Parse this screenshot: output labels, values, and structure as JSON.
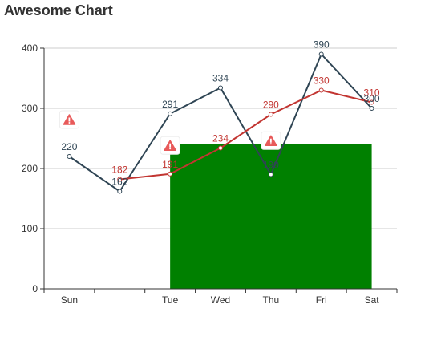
{
  "chart_data": {
    "type": "line",
    "title": "Awesome Chart",
    "categories": [
      "Sun",
      "",
      "Tue",
      "Wed",
      "Thu",
      "Fri",
      "Sat"
    ],
    "ylim": [
      0,
      400
    ],
    "yticks": [
      0,
      100,
      200,
      300,
      400
    ],
    "grid": true,
    "series": [
      {
        "values": [
          220,
          162,
          291,
          334,
          190,
          390,
          300
        ],
        "color": "#2f4554",
        "label_position": "above"
      },
      {
        "values": [
          null,
          182,
          191,
          234,
          290,
          330,
          310
        ],
        "color": "#c23531",
        "label_position": "above"
      }
    ],
    "area": {
      "from_index": 2,
      "to_index": 6,
      "value": 240,
      "color": "#008000"
    },
    "warning_markers": [
      {
        "index": 0,
        "value": 280
      },
      {
        "index": 2,
        "value": 237
      },
      {
        "index": 4,
        "value": 245
      }
    ],
    "warning_icon": "warning-triangle-icon",
    "warning_color": "#e85a5a"
  }
}
